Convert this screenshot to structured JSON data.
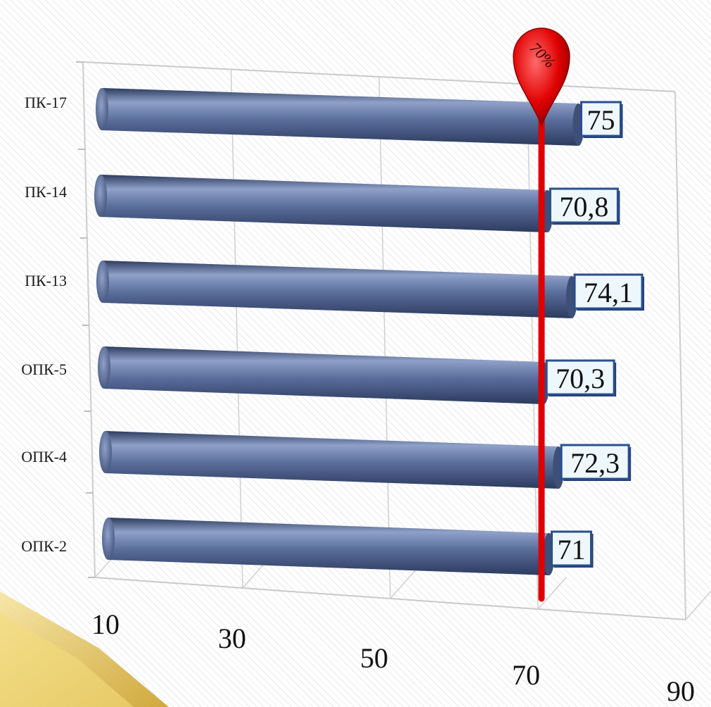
{
  "chart_data": {
    "type": "bar",
    "orientation": "horizontal",
    "categories": [
      "ПК-17",
      "ПК-14",
      "ПК-13",
      "ОПК-5",
      "ОПК-4",
      "ОПК-2"
    ],
    "values": [
      75,
      70.8,
      74.1,
      70.3,
      72.3,
      71
    ],
    "data_labels": [
      "75",
      "70,8",
      "74,1",
      "70,3",
      "72,3",
      "71"
    ],
    "xlim": [
      10,
      90
    ],
    "x_ticks": [
      "10",
      "30",
      "50",
      "70",
      "90"
    ],
    "threshold": {
      "value": 70,
      "label": "70%"
    },
    "grid": true,
    "legend": "none",
    "title": "",
    "xlabel": "",
    "ylabel": ""
  },
  "colors": {
    "bar": "#5a6e9c",
    "bar_highlight": "#8fa1c8",
    "bar_shadow": "#2c3a5e",
    "label_box": "#eef7fb",
    "label_border": "#2a4f8f",
    "threshold": "#e00000",
    "accent_gold": "#e7c13a"
  }
}
